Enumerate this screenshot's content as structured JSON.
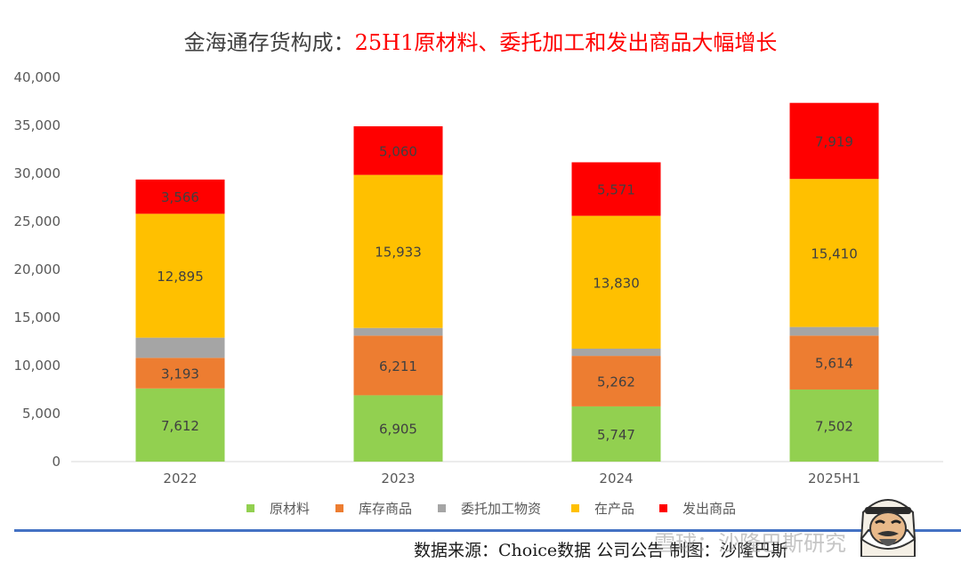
{
  "title": {
    "main": "金海通存货构成：",
    "highlight": "25H1原材料、委托加工和发出商品大幅增长"
  },
  "chart_data": {
    "type": "bar",
    "stacked": true,
    "categories": [
      "2022",
      "2023",
      "2024",
      "2025H1"
    ],
    "ylim": [
      0,
      40000
    ],
    "yticks": [
      0,
      5000,
      10000,
      15000,
      20000,
      25000,
      30000,
      35000,
      40000
    ],
    "ytick_labels": [
      "0",
      "5,000",
      "10,000",
      "15,000",
      "20,000",
      "25,000",
      "30,000",
      "35,000",
      "40,000"
    ],
    "grid": false,
    "legend": "bottom",
    "series": [
      {
        "name": "原材料",
        "color": "#92d050",
        "values": [
          7612,
          6905,
          5747,
          7502
        ],
        "labels": [
          "7,612",
          "6,905",
          "5,747",
          "7,502"
        ]
      },
      {
        "name": "库存商品",
        "color": "#ed7d31",
        "values": [
          3193,
          6211,
          5262,
          5614
        ],
        "labels": [
          "3,193",
          "6,211",
          "5,262",
          "5,614"
        ]
      },
      {
        "name": "委托加工物资",
        "color": "#a5a5a5",
        "values": [
          2100,
          800,
          750,
          900
        ],
        "labels": [
          "",
          "",
          "",
          ""
        ]
      },
      {
        "name": "在产品",
        "color": "#ffc000",
        "values": [
          12895,
          15933,
          13830,
          15410
        ],
        "labels": [
          "12,895",
          "15,933",
          "13,830",
          "15,410"
        ]
      },
      {
        "name": "发出商品",
        "color": "#ff0000",
        "values": [
          3566,
          5060,
          5571,
          7919
        ],
        "labels": [
          "3,566",
          "5,060",
          "5,571",
          "7,919"
        ]
      }
    ]
  },
  "footer": {
    "source": "数据来源：Choice数据  公司公告  制图：沙隆巴斯",
    "watermark": "雪球：沙隆巴斯研究"
  }
}
